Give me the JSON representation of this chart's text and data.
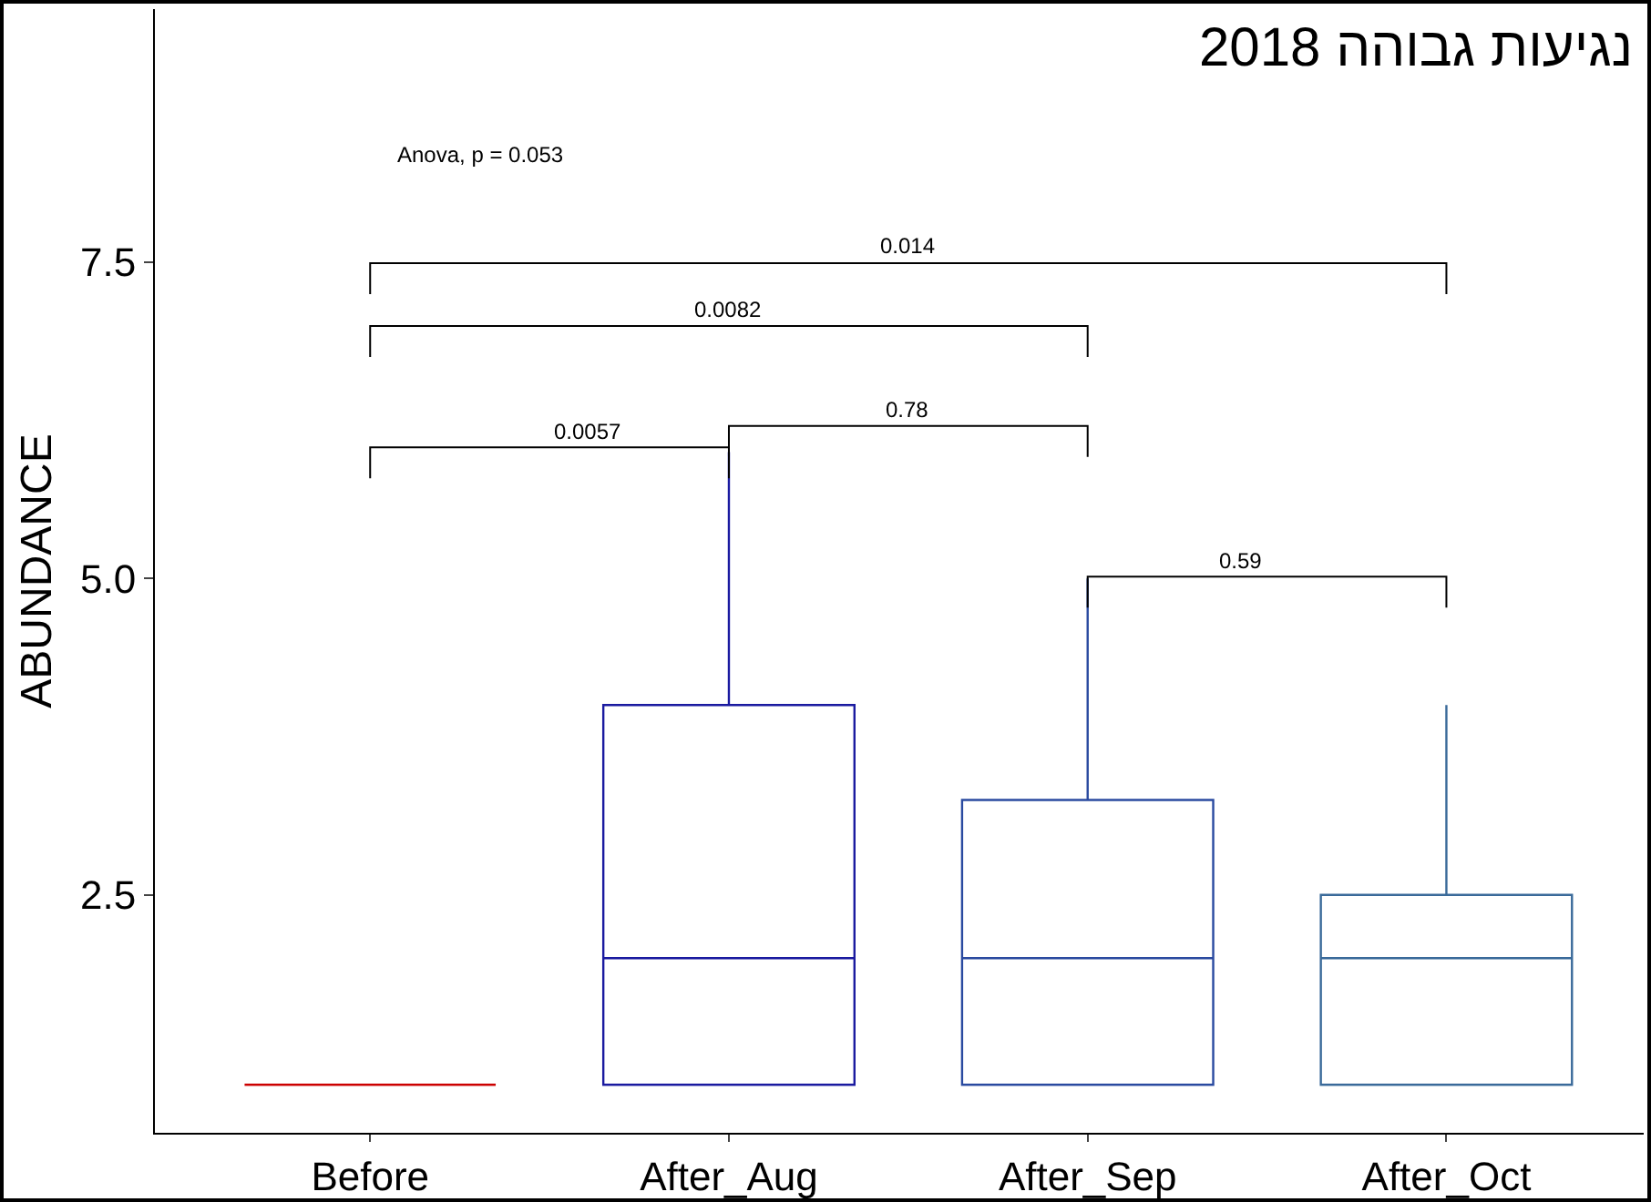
{
  "chart_data": {
    "type": "box",
    "title": "נגיעות גבוהה 2018",
    "ylabel": "ABUNDANCE",
    "categories": [
      "Before",
      "After_Aug",
      "After_Sep",
      "After_Oct"
    ],
    "colors": [
      "#cc0000",
      "#1a1aa0",
      "#2a4aa0",
      "#3a6a9a"
    ],
    "boxes": [
      {
        "low": 1,
        "q1": 1,
        "median": 1,
        "q3": 1,
        "high": 1
      },
      {
        "low": 1,
        "q1": 1,
        "median": 2,
        "q3": 4,
        "high": 6
      },
      {
        "low": 1,
        "q1": 1,
        "median": 2,
        "q3": 3.25,
        "high": 5
      },
      {
        "low": 1,
        "q1": 1,
        "median": 2,
        "q3": 2.5,
        "high": 4
      }
    ],
    "ylim": [
      0.62,
      9.5
    ],
    "yticks": [
      2.5,
      {
        "value": 5,
        "label": "5.0"
      },
      7.5
    ],
    "legend": false,
    "annotations": [
      "Anova, p = 0.053",
      "0.014",
      "0.0082",
      "0.0057",
      "0.78",
      "0.59"
    ]
  }
}
